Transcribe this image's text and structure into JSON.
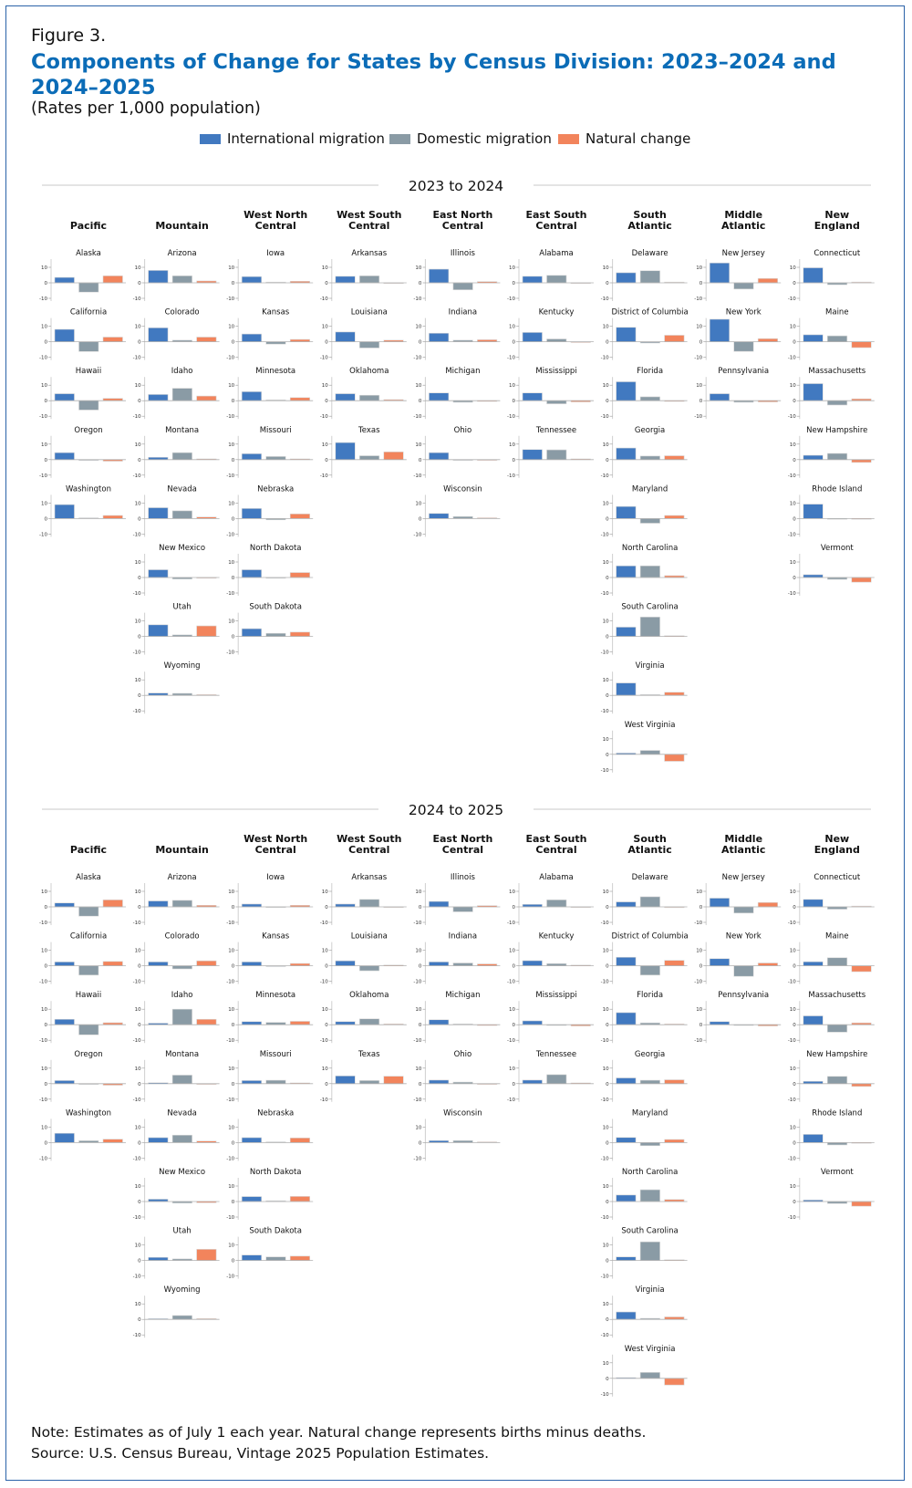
{
  "figure_label": "Figure 3.",
  "title": "Components of Change for States by Census Division: 2023–2024 and 2024–2025",
  "title_lines": [
    "Components of Change for States by Census Division: 2023–2024 and",
    "2024–2025"
  ],
  "subtitle": "(Rates per 1,000 population)",
  "legend": [
    {
      "label": "International migration",
      "color": "#4179c0"
    },
    {
      "label": "Domestic migration",
      "color": "#8a9ba5"
    },
    {
      "label": "Natural change",
      "color": "#f2845c"
    }
  ],
  "note": "Note: Estimates as of July 1 each year. Natural change represents births minus deaths.",
  "source": "Source: U.S. Census Bureau, Vintage 2025 Population Estimates.",
  "chart_data": {
    "type": "bar",
    "layout": "small-multiples",
    "series_names": [
      "International migration",
      "Domestic migration",
      "Natural change"
    ],
    "ylim": [
      -10,
      15
    ],
    "yticks": [
      10,
      0,
      -10
    ],
    "ytick_labels": [
      "10",
      "0",
      "-10"
    ],
    "divisions": [
      {
        "name": "Pacific",
        "lines": [
          "Pacific"
        ]
      },
      {
        "name": "Mountain",
        "lines": [
          "Mountain"
        ]
      },
      {
        "name": "West North Central",
        "lines": [
          "West North",
          "Central"
        ]
      },
      {
        "name": "West South Central",
        "lines": [
          "West South",
          "Central"
        ]
      },
      {
        "name": "East North Central",
        "lines": [
          "East North",
          "Central"
        ]
      },
      {
        "name": "East South Central",
        "lines": [
          "East South",
          "Central"
        ]
      },
      {
        "name": "South Atlantic",
        "lines": [
          "South",
          "Atlantic"
        ]
      },
      {
        "name": "Middle Atlantic",
        "lines": [
          "Middle",
          "Atlantic"
        ]
      },
      {
        "name": "New England",
        "lines": [
          "New",
          "England"
        ]
      }
    ],
    "panels": [
      {
        "title": "2023 to 2024",
        "divisions": [
          [
            [
              "Alaska",
              [
                3.5,
                -6,
                4.5
              ]
            ],
            [
              "California",
              [
                8,
                -6.3,
                3
              ]
            ],
            [
              "Hawaii",
              [
                4.5,
                -6,
                1.5
              ]
            ],
            [
              "Oregon",
              [
                4.5,
                -0.5,
                -1
              ]
            ],
            [
              "Washington",
              [
                9,
                0.3,
                2
              ]
            ]
          ],
          [
            [
              "Arizona",
              [
                8,
                4.5,
                1.2
              ]
            ],
            [
              "Colorado",
              [
                9,
                1,
                3
              ]
            ],
            [
              "Idaho",
              [
                4,
                8,
                3
              ]
            ],
            [
              "Montana",
              [
                1.5,
                4.5,
                0.2
              ]
            ],
            [
              "Nevada",
              [
                7,
                5,
                1
              ]
            ],
            [
              "New Mexico",
              [
                5,
                -1,
                -0.5
              ]
            ],
            [
              "Utah",
              [
                7.5,
                1,
                6.8
              ]
            ],
            [
              "Wyoming",
              [
                1.5,
                1.3,
                0.3
              ]
            ]
          ],
          [
            [
              "Iowa",
              [
                4,
                0.2,
                1
              ]
            ],
            [
              "Kansas",
              [
                5,
                -1.5,
                1.5
              ]
            ],
            [
              "Minnesota",
              [
                5.8,
                0.1,
                2
              ]
            ],
            [
              "Missouri",
              [
                3.8,
                2,
                0.3
              ]
            ],
            [
              "Nebraska",
              [
                6.5,
                -0.8,
                3
              ]
            ],
            [
              "North Dakota",
              [
                5,
                -0.5,
                3.2
              ]
            ],
            [
              "South Dakota",
              [
                5,
                2,
                2.8
              ]
            ]
          ],
          [
            [
              "Arkansas",
              [
                4.2,
                4.5,
                -0.3
              ]
            ],
            [
              "Louisiana",
              [
                6.3,
                -4,
                1
              ]
            ],
            [
              "Oklahoma",
              [
                4.5,
                3.5,
                0.7
              ]
            ],
            [
              "Texas",
              [
                11,
                2.5,
                5
              ]
            ]
          ],
          [
            [
              "Illinois",
              [
                8.8,
                -4.5,
                0.8
              ]
            ],
            [
              "Indiana",
              [
                5.5,
                1,
                1.3
              ]
            ],
            [
              "Michigan",
              [
                5,
                -1,
                -0.3
              ]
            ],
            [
              "Ohio",
              [
                4.5,
                -0.3,
                -0.2
              ]
            ],
            [
              "Wisconsin",
              [
                3.3,
                1.3,
                0.5
              ]
            ]
          ],
          [
            [
              "Alabama",
              [
                4.2,
                4.8,
                -0.3
              ]
            ],
            [
              "Kentucky",
              [
                6,
                1.8,
                -0.5
              ]
            ],
            [
              "Mississippi",
              [
                5,
                -2,
                -0.8
              ]
            ],
            [
              "Tennessee",
              [
                6.5,
                6.3,
                0.3
              ]
            ]
          ],
          [
            [
              "Delaware",
              [
                6.5,
                7.8,
                0.2
              ]
            ],
            [
              "District of Columbia",
              [
                9.3,
                -0.8,
                4.2
              ]
            ],
            [
              "Florida",
              [
                12.2,
                2.5,
                -0.3
              ]
            ],
            [
              "Georgia",
              [
                7.5,
                2.3,
                2.5
              ]
            ],
            [
              "Maryland",
              [
                7.8,
                -3,
                2
              ]
            ],
            [
              "North Carolina",
              [
                7.5,
                7.5,
                1.2
              ]
            ],
            [
              "South Carolina",
              [
                6,
                12.5,
                0.2
              ]
            ],
            [
              "Virginia",
              [
                8,
                0.3,
                2
              ]
            ],
            [
              "West Virginia",
              [
                0.8,
                2.5,
                -4.5
              ]
            ]
          ],
          [
            [
              "New Jersey",
              [
                12.8,
                -4,
                2.8
              ]
            ],
            [
              "New York",
              [
                14.5,
                -6.2,
                2
              ]
            ],
            [
              "Pennsylvania",
              [
                4.5,
                -1,
                -0.8
              ]
            ]
          ],
          [
            [
              "Connecticut",
              [
                9.7,
                -1.2,
                0.5
              ]
            ],
            [
              "Maine",
              [
                4.5,
                3.8,
                -3.8
              ]
            ],
            [
              "Massachusetts",
              [
                11,
                -2.8,
                1.2
              ]
            ],
            [
              "New Hampshire",
              [
                2.8,
                4,
                -1.8
              ]
            ],
            [
              "Rhode Island",
              [
                9.3,
                -0.3,
                -0.3
              ]
            ],
            [
              "Vermont",
              [
                1.8,
                -1.2,
                -3
              ]
            ]
          ]
        ]
      },
      {
        "title": "2024 to 2025",
        "divisions": [
          [
            [
              "Alaska",
              [
                2.5,
                -6,
                4.5
              ]
            ],
            [
              "California",
              [
                2.5,
                -6,
                2.8
              ]
            ],
            [
              "Hawaii",
              [
                3.5,
                -6.5,
                1.3
              ]
            ],
            [
              "Oregon",
              [
                2,
                -0.3,
                -1
              ]
            ],
            [
              "Washington",
              [
                6,
                1.2,
                2.2
              ]
            ]
          ],
          [
            [
              "Arizona",
              [
                3.8,
                4.2,
                1
              ]
            ],
            [
              "Colorado",
              [
                2.5,
                -2,
                3.2
              ]
            ],
            [
              "Idaho",
              [
                1,
                10,
                3.5
              ]
            ],
            [
              "Montana",
              [
                0.6,
                5.5,
                -0.2
              ]
            ],
            [
              "Nevada",
              [
                3.2,
                4.8,
                1
              ]
            ],
            [
              "New Mexico",
              [
                1.5,
                -1,
                -0.8
              ]
            ],
            [
              "Utah",
              [
                2,
                1,
                7.2
              ]
            ],
            [
              "Wyoming",
              [
                0.3,
                2.5,
                0.5
              ]
            ]
          ],
          [
            [
              "Iowa",
              [
                1.8,
                -0.3,
                1
              ]
            ],
            [
              "Kansas",
              [
                2.5,
                -0.5,
                1.5
              ]
            ],
            [
              "Minnesota",
              [
                2,
                1.5,
                2.2
              ]
            ],
            [
              "Missouri",
              [
                2,
                2.2,
                0.1
              ]
            ],
            [
              "Nebraska",
              [
                3.2,
                0.2,
                3
              ]
            ],
            [
              "North Dakota",
              [
                3.2,
                0.5,
                3.3
              ]
            ],
            [
              "South Dakota",
              [
                3.5,
                2.3,
                2.8
              ]
            ]
          ],
          [
            [
              "Arkansas",
              [
                1.8,
                4.8,
                -0.3
              ]
            ],
            [
              "Louisiana",
              [
                3.2,
                -3.2,
                0.5
              ]
            ],
            [
              "Oklahoma",
              [
                2,
                3.8,
                0.5
              ]
            ],
            [
              "Texas",
              [
                5,
                2,
                4.8
              ]
            ]
          ],
          [
            [
              "Illinois",
              [
                3.5,
                -3.2,
                0.8
              ]
            ],
            [
              "Indiana",
              [
                2.5,
                1.8,
                1.2
              ]
            ],
            [
              "Michigan",
              [
                3.2,
                0.3,
                -0.5
              ]
            ],
            [
              "Ohio",
              [
                2.3,
                1,
                -0.2
              ]
            ],
            [
              "Wisconsin",
              [
                1.3,
                1.3,
                0.2
              ]
            ]
          ],
          [
            [
              "Alabama",
              [
                1.6,
                4.5,
                -0.3
              ]
            ],
            [
              "Kentucky",
              [
                3.3,
                1.4,
                0.1
              ]
            ],
            [
              "Mississippi",
              [
                2.5,
                -0.2,
                -0.8
              ]
            ],
            [
              "Tennessee",
              [
                2.3,
                5.8,
                0.3
              ]
            ]
          ],
          [
            [
              "Delaware",
              [
                3.2,
                6.5,
                -0.5
              ]
            ],
            [
              "District of Columbia",
              [
                5.5,
                -6,
                3.5
              ]
            ],
            [
              "Florida",
              [
                7.8,
                1.2,
                0.1
              ]
            ],
            [
              "Georgia",
              [
                3.7,
                2.2,
                2.5
              ]
            ],
            [
              "Maryland",
              [
                3.3,
                -2,
                2
              ]
            ],
            [
              "North Carolina",
              [
                4.2,
                7.6,
                1.3
              ]
            ],
            [
              "South Carolina",
              [
                2.3,
                12,
                0.3
              ]
            ],
            [
              "Virginia",
              [
                4.8,
                0.7,
                1.6
              ]
            ],
            [
              "West Virginia",
              [
                0.3,
                3.8,
                -4.3
              ]
            ]
          ],
          [
            [
              "New Jersey",
              [
                5.6,
                -4,
                2.8
              ]
            ],
            [
              "New York",
              [
                4.6,
                -6.8,
                1.8
              ]
            ],
            [
              "Pennsylvania",
              [
                2,
                -0.2,
                -0.8
              ]
            ]
          ],
          [
            [
              "Connecticut",
              [
                4.8,
                -1.5,
                0.5
              ]
            ],
            [
              "Maine",
              [
                2.6,
                5.2,
                -3.8
              ]
            ],
            [
              "Massachusetts",
              [
                5.7,
                -4.8,
                1.2
              ]
            ],
            [
              "New Hampshire",
              [
                1.5,
                4.7,
                -1.8
              ]
            ],
            [
              "Rhode Island",
              [
                5.3,
                -1.5,
                -0.2
              ]
            ],
            [
              "Vermont",
              [
                1,
                -1.3,
                -3
              ]
            ]
          ]
        ]
      }
    ]
  }
}
